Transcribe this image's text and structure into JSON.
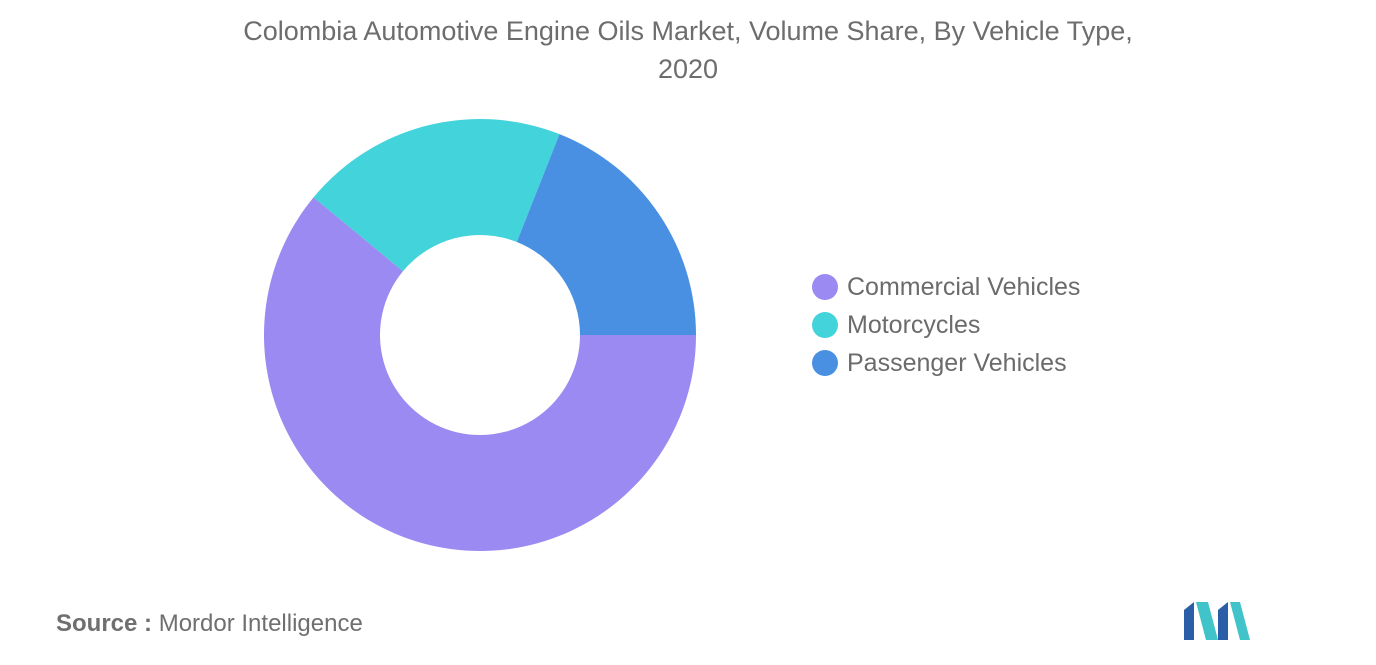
{
  "chart_data": {
    "type": "pie",
    "donut": true,
    "title_lines": [
      "Colombia Automotive Engine Oils Market, Volume Share, By Vehicle Type,",
      "2020"
    ],
    "categories": [
      "Commercial Vehicles",
      "Motorcycles",
      "Passenger Vehicles"
    ],
    "values": [
      61,
      20,
      19
    ],
    "colors": [
      "#9a8af2",
      "#42d3db",
      "#4a90e2"
    ],
    "legend_position": "right",
    "start_angle_note": "clockwise from 3 o'clock"
  },
  "source": {
    "prefix": "Source :",
    "name": "Mordor Intelligence"
  },
  "logo": {
    "icon": "mordor-intelligence-logo-icon",
    "colors": [
      "#2a5fa8",
      "#40c4c9"
    ]
  }
}
